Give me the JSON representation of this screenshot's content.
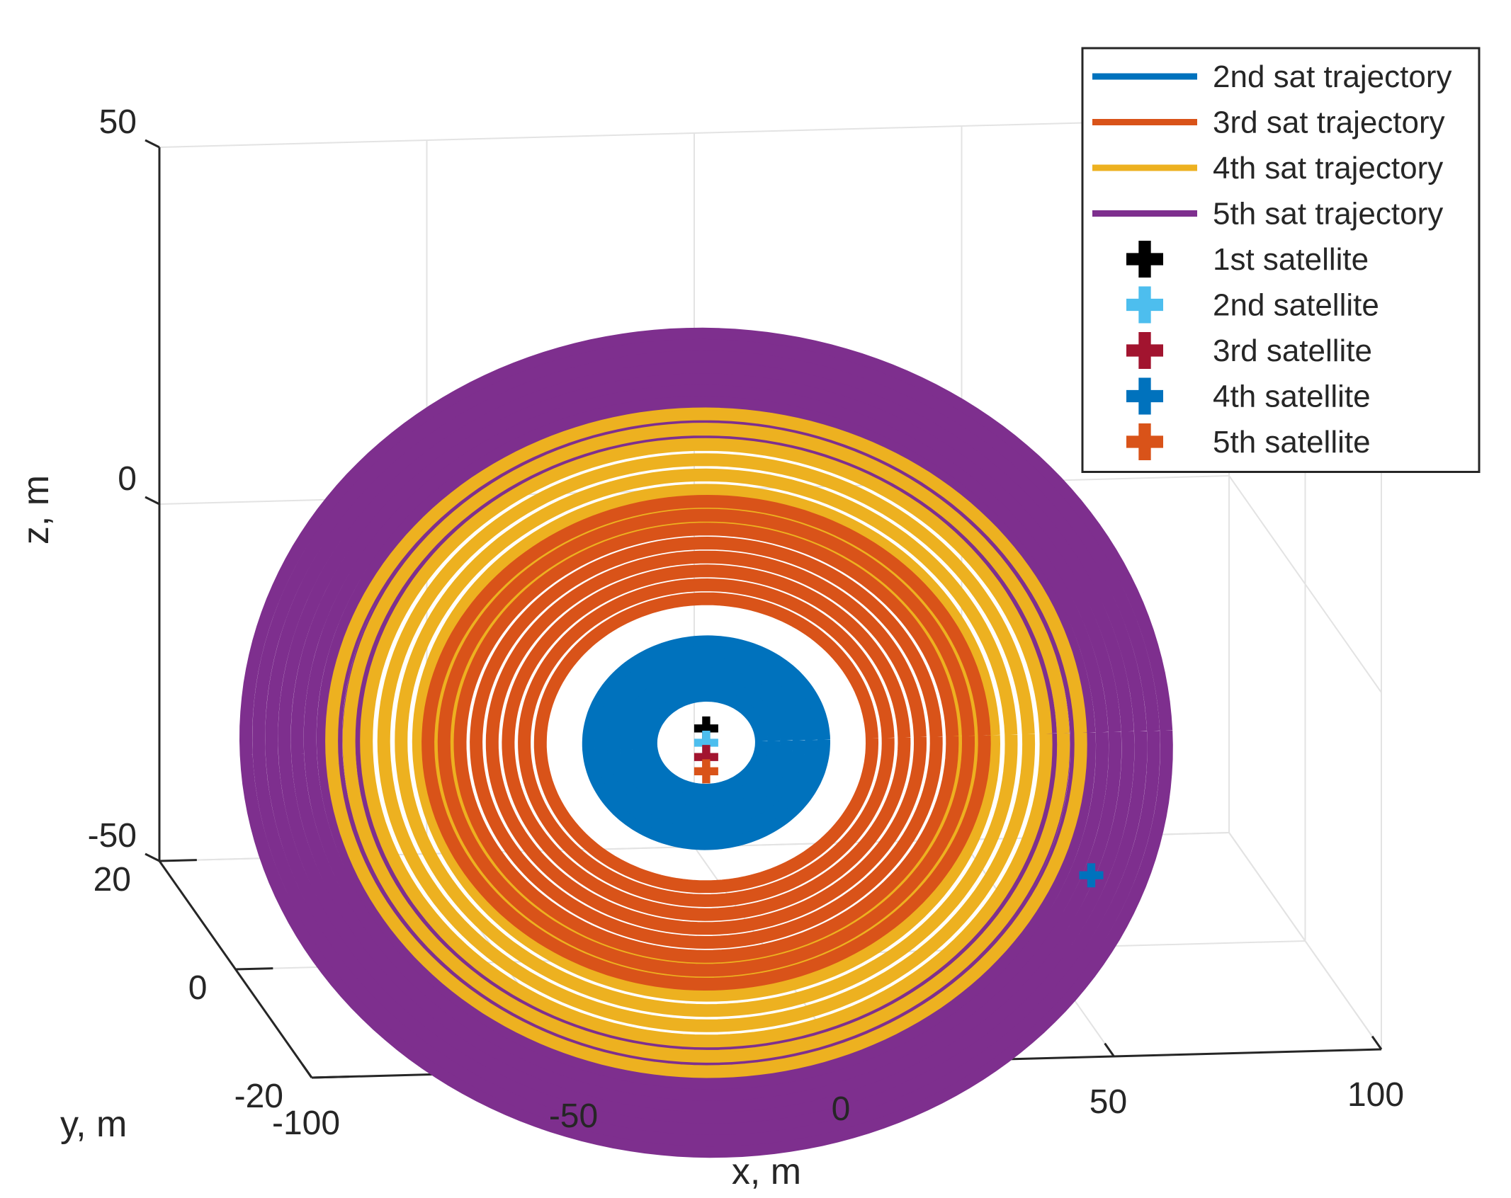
{
  "chart_data": {
    "type": "line3d",
    "title": "",
    "xlabel": "x, m",
    "ylabel": "y, m",
    "zlabel": "z, m",
    "xlim": [
      -100,
      100
    ],
    "ylim": [
      -20,
      20
    ],
    "zlim": [
      -50,
      50
    ],
    "xticks": [
      "-100",
      "-50",
      "0",
      "50",
      "100"
    ],
    "yticks": [
      "-20",
      "0",
      "20"
    ],
    "zticks": [
      "-50",
      "0",
      "50"
    ],
    "grid": true,
    "legend_position": "top-right",
    "series": [
      {
        "name": "2nd sat trajectory",
        "color": "#0072BD",
        "kind": "line",
        "radius": 22,
        "width": 14,
        "wraps": 6,
        "tilt": 0.15
      },
      {
        "name": "3rd sat trajectory",
        "color": "#D95319",
        "kind": "line",
        "radius": 52,
        "width": 24,
        "wraps": 8,
        "tilt": 0.2
      },
      {
        "name": "4th sat trajectory",
        "color": "#EDB120",
        "kind": "line",
        "radius": 70,
        "width": 26,
        "wraps": 8,
        "tilt": 0.25
      },
      {
        "name": "5th sat trajectory",
        "color": "#7E2F8E",
        "kind": "line",
        "radius": 86,
        "width": 24,
        "wraps": 10,
        "tilt": 0.3
      },
      {
        "name": "1st satellite",
        "color": "#000000",
        "kind": "marker",
        "x": -12,
        "y": 0,
        "z": -18
      },
      {
        "name": "2nd satellite",
        "color": "#4DBEEE",
        "kind": "marker",
        "x": -12,
        "y": 0,
        "z": -20
      },
      {
        "name": "3rd satellite",
        "color": "#A2142F",
        "kind": "marker",
        "x": -12,
        "y": 0,
        "z": -22
      },
      {
        "name": "4th satellite",
        "color": "#0072BD",
        "kind": "marker",
        "x": 60,
        "y": 0,
        "z": -40
      },
      {
        "name": "5th satellite",
        "color": "#D95319",
        "kind": "marker",
        "x": -12,
        "y": 0,
        "z": -24
      }
    ]
  }
}
